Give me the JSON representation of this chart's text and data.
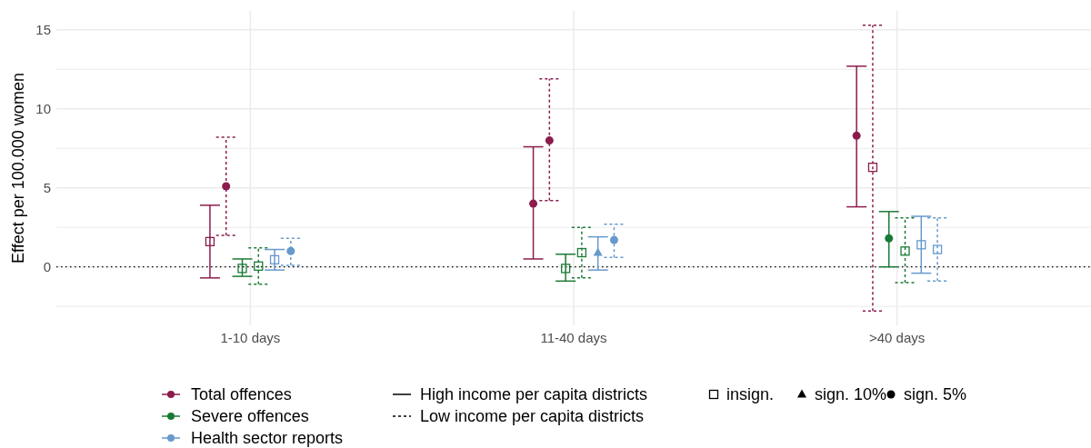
{
  "chart_data": {
    "type": "scatter",
    "ylabel": "Effect per 100.000 women",
    "categories": [
      "1-10 days",
      "11-40 days",
      ">40 days"
    ],
    "ylim": [
      -3.7,
      16.2
    ],
    "yticks": [
      0,
      5,
      10,
      15
    ],
    "grid": true,
    "legend": "bottom",
    "ref_lines": [
      {
        "axis": "y",
        "value": 0,
        "color": "#000000",
        "line_style": "dotted"
      }
    ],
    "annotations": [
      "High income per capita districts",
      "Low income per capita districts",
      "insign.",
      "sign. 10%",
      "sign. 5%"
    ],
    "series": [
      {
        "color": "#8b1c4d",
        "line_style": "solid",
        "marker": "square",
        "values": [
          1.6,
          null,
          null
        ],
        "errors": [
          [
            -0.7,
            3.9
          ],
          null,
          null
        ]
      },
      {
        "name": "Total offences",
        "color": "#8b1c4d",
        "line_style": "solid",
        "marker": "circle",
        "values": [
          null,
          4.0,
          8.3
        ],
        "errors": [
          null,
          [
            0.5,
            7.6
          ],
          [
            3.8,
            12.7
          ]
        ]
      },
      {
        "color": "#8b1c4d",
        "line_style": "dashed",
        "marker": "circle",
        "values": [
          5.1,
          8.0,
          null
        ],
        "errors": [
          [
            2.0,
            8.2
          ],
          [
            4.2,
            11.9
          ],
          null
        ]
      },
      {
        "color": "#8b1c4d",
        "line_style": "dashed",
        "marker": "square",
        "values": [
          null,
          null,
          6.3
        ],
        "errors": [
          null,
          null,
          [
            -2.8,
            15.3
          ]
        ]
      },
      {
        "color": "#1a7a35",
        "line_style": "solid",
        "marker": "square",
        "values": [
          -0.1,
          -0.1,
          null
        ],
        "errors": [
          [
            -0.6,
            0.5
          ],
          [
            -0.9,
            0.8
          ],
          null
        ]
      },
      {
        "name": "Severe offences",
        "color": "#1a7a35",
        "line_style": "solid",
        "marker": "circle",
        "values": [
          null,
          null,
          1.8
        ],
        "errors": [
          null,
          null,
          [
            0.0,
            3.5
          ]
        ]
      },
      {
        "color": "#1a7a35",
        "line_style": "dashed",
        "marker": "square",
        "values": [
          0.05,
          0.9,
          1.0
        ],
        "errors": [
          [
            -1.1,
            1.2
          ],
          [
            -0.7,
            2.5
          ],
          [
            -1.0,
            3.1
          ]
        ]
      },
      {
        "color": "#6699cc",
        "line_style": "solid",
        "marker": "square",
        "values": [
          0.45,
          null,
          1.4
        ],
        "errors": [
          [
            -0.2,
            1.1
          ],
          null,
          [
            -0.4,
            3.2
          ]
        ]
      },
      {
        "color": "#6699cc",
        "line_style": "solid",
        "marker": "triangle",
        "values": [
          null,
          0.9,
          null
        ],
        "errors": [
          null,
          [
            -0.2,
            1.9
          ],
          null
        ]
      },
      {
        "name": "Health sector reports",
        "color": "#6699cc",
        "line_style": "dashed",
        "marker": "circle",
        "values": [
          1.0,
          1.7,
          null
        ],
        "errors": [
          [
            0.1,
            1.8
          ],
          [
            0.6,
            2.7
          ],
          null
        ]
      },
      {
        "color": "#6699cc",
        "line_style": "dashed",
        "marker": "square",
        "values": [
          null,
          null,
          1.1
        ],
        "errors": [
          null,
          null,
          [
            -0.9,
            3.1
          ]
        ]
      }
    ]
  }
}
